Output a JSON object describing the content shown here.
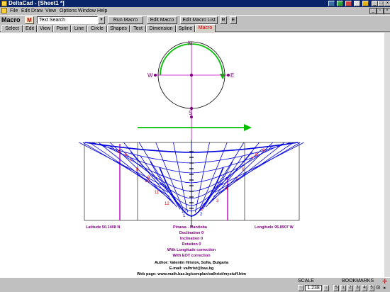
{
  "window": {
    "title": "DeltaCad - [Sheet1 *]"
  },
  "menu": {
    "items": [
      "File",
      "Edit",
      "Draw",
      "View",
      "Options",
      "Window",
      "Help"
    ]
  },
  "macro_bar": {
    "label": "Macro",
    "icon_letter": "M",
    "input_value": "Text Search",
    "run_label": "Run Macro",
    "edit_label": "Edit Macro",
    "edit_list_label": "Edit Macro List",
    "r_label": "R",
    "e_label": "E"
  },
  "tabs": [
    "Select",
    "Edit",
    "View",
    "Point",
    "Line",
    "Circle",
    "Shapes",
    "Text",
    "Dimension",
    "Spline",
    "Macro"
  ],
  "active_tab": "Macro",
  "drawing": {
    "compass": {
      "n": "N",
      "s": "S",
      "e": "E",
      "w": "W"
    },
    "latitude": "Latitude 50.1408 N",
    "place": "Pinawa - Manitoba",
    "longitude": "Longitude 95.8907 W",
    "info_lines": [
      "Declination 0",
      "Inclination 0",
      "Rotation 0",
      "With Longitude correction",
      "With EOT correction"
    ],
    "credits": [
      "Author: Valentin Hristov, Sofia, Bulgaria",
      "E-mail: valhrist@bas.bg",
      "Web page: www.math.bas.bg/complan/valhrist/mystuff.htm"
    ],
    "hour_labels_left": [
      "5",
      "6",
      "7",
      "8",
      "9",
      "10",
      "11",
      "12"
    ],
    "hour_labels_right": [
      "9",
      "8",
      "7",
      "6",
      "5",
      "4",
      "3",
      "2"
    ],
    "hour_labels_bottom": [
      "12",
      "1",
      "2"
    ],
    "colors": {
      "dial": "#0000e0",
      "meridian": "#c000c0",
      "arrow": "#00c000",
      "hours": "#e00000",
      "text": "#800080"
    }
  },
  "status": {
    "scale_label": "SCALE",
    "scale_value": "1.238",
    "bookmarks_label": "BOOKMARKS",
    "bookmarks": [
      "S",
      "1",
      "2",
      "3",
      "4",
      "5"
    ]
  }
}
